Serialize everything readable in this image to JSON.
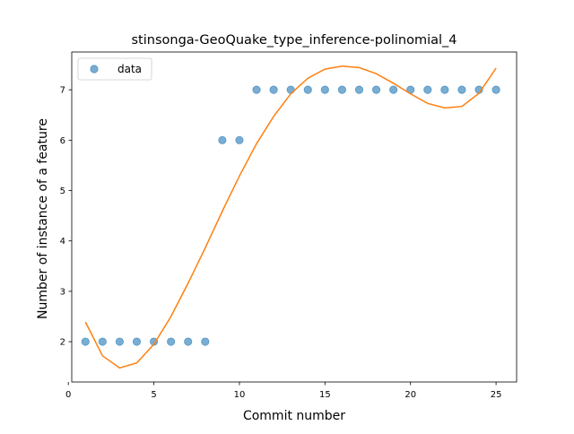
{
  "chart_data": {
    "type": "scatter",
    "title": "stinsonga-GeoQuake_type_inference-polinomial_4",
    "xlabel": "Commit number",
    "ylabel": "Number of instance of a feature",
    "xlim": [
      0.2,
      26.2
    ],
    "ylim": [
      1.2,
      7.75
    ],
    "x_ticks": [
      0,
      5,
      10,
      15,
      20,
      25
    ],
    "y_ticks": [
      2,
      3,
      4,
      5,
      6,
      7
    ],
    "legend": {
      "position": "top-left",
      "entries": [
        "data"
      ]
    },
    "series": [
      {
        "name": "data",
        "kind": "scatter",
        "color": "#1f77b4",
        "x": [
          1,
          2,
          3,
          4,
          5,
          6,
          7,
          8,
          9,
          10,
          11,
          12,
          13,
          14,
          15,
          16,
          17,
          18,
          19,
          20,
          21,
          22,
          23,
          24,
          25
        ],
        "y": [
          2,
          2,
          2,
          2,
          2,
          2,
          2,
          2,
          6,
          6,
          7,
          7,
          7,
          7,
          7,
          7,
          7,
          7,
          7,
          7,
          7,
          7,
          7,
          7,
          7
        ]
      },
      {
        "kind": "line",
        "color": "#ff7f0e",
        "x": [
          1,
          2,
          3,
          4,
          5,
          6,
          7,
          8,
          9,
          10,
          11,
          12,
          13,
          14,
          15,
          16,
          17,
          18,
          19,
          20,
          21,
          22,
          23,
          24,
          25
        ],
        "y": [
          2.39,
          1.72,
          1.48,
          1.58,
          1.95,
          2.5,
          3.16,
          3.86,
          4.59,
          5.29,
          5.93,
          6.47,
          6.92,
          7.23,
          7.41,
          7.47,
          7.44,
          7.32,
          7.13,
          6.92,
          6.73,
          6.64,
          6.67,
          6.93,
          7.43
        ]
      }
    ]
  }
}
